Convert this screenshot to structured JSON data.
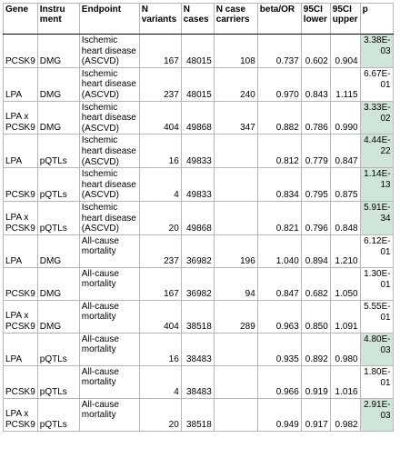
{
  "table": {
    "headers": [
      "Gene",
      "Instru ment",
      "Endpoint",
      "N variants",
      "N cases",
      "N case carriers",
      "beta/OR",
      "95CI lower",
      "95CI upper",
      "p"
    ],
    "rows": [
      {
        "gene": "PCSK9",
        "instrument": "DMG",
        "endpoint": "Ischemic heart disease (ASCVD)",
        "n_variants": "167",
        "n_cases": "48015",
        "n_case_carriers": "108",
        "beta_or": "0.737",
        "ci_lower": "0.602",
        "ci_upper": "0.904",
        "p": "3.38E-03",
        "p_highlight": true
      },
      {
        "gene": "LPA",
        "instrument": "DMG",
        "endpoint": "Ischemic heart disease (ASCVD)",
        "n_variants": "237",
        "n_cases": "48015",
        "n_case_carriers": "240",
        "beta_or": "0.970",
        "ci_lower": "0.843",
        "ci_upper": "1.115",
        "p": "6.67E-01",
        "p_highlight": false
      },
      {
        "gene": "LPA x PCSK9",
        "instrument": "DMG",
        "endpoint": "Ischemic heart disease (ASCVD)",
        "n_variants": "404",
        "n_cases": "49868",
        "n_case_carriers": "347",
        "beta_or": "0.882",
        "ci_lower": "0.786",
        "ci_upper": "0.990",
        "p": "3.33E-02",
        "p_highlight": true
      },
      {
        "gene": "LPA",
        "instrument": "pQTLs",
        "endpoint": "Ischemic heart disease (ASCVD)",
        "n_variants": "16",
        "n_cases": "49833",
        "n_case_carriers": "",
        "beta_or": "0.812",
        "ci_lower": "0.779",
        "ci_upper": "0.847",
        "p": "4.44E-22",
        "p_highlight": true
      },
      {
        "gene": "PCSK9",
        "instrument": "pQTLs",
        "endpoint": "Ischemic heart disease (ASCVD)",
        "n_variants": "4",
        "n_cases": "49833",
        "n_case_carriers": "",
        "beta_or": "0.834",
        "ci_lower": "0.795",
        "ci_upper": "0.875",
        "p": "1.14E-13",
        "p_highlight": true
      },
      {
        "gene": "LPA x PCSK9",
        "instrument": "pQTLs",
        "endpoint": "Ischemic heart disease (ASCVD)",
        "n_variants": "20",
        "n_cases": "49868",
        "n_case_carriers": "",
        "beta_or": "0.821",
        "ci_lower": "0.796",
        "ci_upper": "0.848",
        "p": "5.91E-34",
        "p_highlight": true
      },
      {
        "gene": "LPA",
        "instrument": "DMG",
        "endpoint": "All-cause mortality",
        "n_variants": "237",
        "n_cases": "36982",
        "n_case_carriers": "196",
        "beta_or": "1.040",
        "ci_lower": "0.894",
        "ci_upper": "1.210",
        "p": "6.12E-01",
        "p_highlight": false,
        "group_start": true
      },
      {
        "gene": "PCSK9",
        "instrument": "DMG",
        "endpoint": "All-cause mortality",
        "n_variants": "167",
        "n_cases": "36982",
        "n_case_carriers": "94",
        "beta_or": "0.847",
        "ci_lower": "0.682",
        "ci_upper": "1.050",
        "p": "1.30E-01",
        "p_highlight": false
      },
      {
        "gene": "LPA x PCSK9",
        "instrument": "DMG",
        "endpoint": "All-cause mortality",
        "n_variants": "404",
        "n_cases": "38518",
        "n_case_carriers": "289",
        "beta_or": "0.963",
        "ci_lower": "0.850",
        "ci_upper": "1.091",
        "p": "5.55E-01",
        "p_highlight": false
      },
      {
        "gene": "LPA",
        "instrument": "pQTLs",
        "endpoint": "All-cause mortality",
        "n_variants": "16",
        "n_cases": "38483",
        "n_case_carriers": "",
        "beta_or": "0.935",
        "ci_lower": "0.892",
        "ci_upper": "0.980",
        "p": "4.80E-03",
        "p_highlight": true
      },
      {
        "gene": "PCSK9",
        "instrument": "pQTLs",
        "endpoint": "All-cause mortality",
        "n_variants": "4",
        "n_cases": "38483",
        "n_case_carriers": "",
        "beta_or": "0.966",
        "ci_lower": "0.919",
        "ci_upper": "1.016",
        "p": "1.80E-01",
        "p_highlight": false
      },
      {
        "gene": "LPA x PCSK9",
        "instrument": "pQTLs",
        "endpoint": "All-cause mortality",
        "n_variants": "20",
        "n_cases": "38518",
        "n_case_carriers": "",
        "beta_or": "0.949",
        "ci_lower": "0.917",
        "ci_upper": "0.982",
        "p": "2.91E-03",
        "p_highlight": true
      }
    ],
    "colors": {
      "highlight": "#cfe5d7",
      "grid": "#b7b7b7",
      "group_rule": "#000000"
    }
  }
}
